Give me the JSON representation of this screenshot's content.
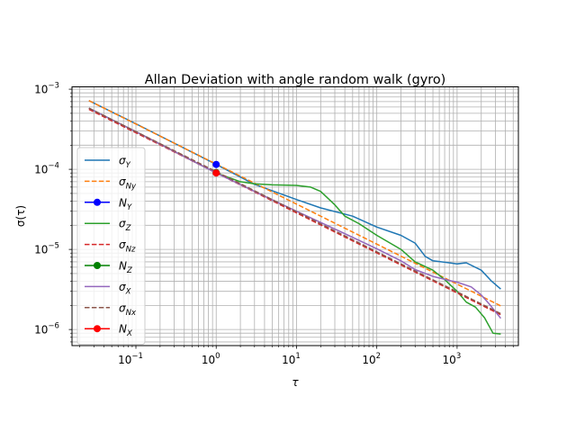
{
  "chart_data": {
    "type": "line",
    "title": "Allan Deviation with angle random walk (gyro)",
    "xlabel": "τ",
    "ylabel": "σ(τ)",
    "xscale": "log",
    "yscale": "log",
    "xlim": [
      0.016,
      5800
    ],
    "ylim": [
      6.3e-07,
      0.00107
    ],
    "grid": "on (major and minor)",
    "legend_position": "center-left",
    "x_ticks": [
      {
        "value": 0.1,
        "base": "10",
        "exp": "−1"
      },
      {
        "value": 1,
        "base": "10",
        "exp": "0"
      },
      {
        "value": 10,
        "base": "10",
        "exp": "1"
      },
      {
        "value": 100,
        "base": "10",
        "exp": "2"
      },
      {
        "value": 1000,
        "base": "10",
        "exp": "3"
      }
    ],
    "y_ticks": [
      {
        "value": 1e-06,
        "base": "10",
        "exp": "−6"
      },
      {
        "value": 1e-05,
        "base": "10",
        "exp": "−5"
      },
      {
        "value": 0.0001,
        "base": "10",
        "exp": "−4"
      },
      {
        "value": 0.001,
        "base": "10",
        "exp": "−3"
      }
    ],
    "series": [
      {
        "name": "σY",
        "sym": "σ",
        "sub": "Y",
        "color": "#1f77b4",
        "style": "solid",
        "x": [
          0.026,
          0.1,
          1,
          3,
          10,
          20,
          50,
          100,
          200,
          300,
          400,
          500,
          800,
          1000,
          1300,
          2000,
          2700,
          3500
        ],
        "y": [
          0.00072,
          0.00037,
          0.000115,
          6.5e-05,
          4.2e-05,
          3.3e-05,
          2.6e-05,
          1.9e-05,
          1.5e-05,
          1.2e-05,
          8.2e-06,
          7.2e-06,
          6.8e-06,
          6.6e-06,
          6.8e-06,
          5.5e-06,
          4e-06,
          3.2e-06
        ]
      },
      {
        "name": "σNy",
        "sym": "σ",
        "sub": "Ny",
        "color": "#ff7f0e",
        "style": "dashed",
        "x": [
          0.026,
          3500
        ],
        "y": [
          0.00072,
          1.97e-06
        ]
      },
      {
        "name": "NY",
        "sym": "N",
        "sub": "Y",
        "color": "#0000ff",
        "style": "marker",
        "x": [
          1
        ],
        "y": [
          0.000115
        ]
      },
      {
        "name": "σZ",
        "sym": "σ",
        "sub": "Z",
        "color": "#2ca02c",
        "style": "solid",
        "x": [
          0.026,
          0.1,
          1,
          2,
          3,
          5,
          10,
          15,
          20,
          30,
          40,
          60,
          100,
          200,
          300,
          500,
          700,
          1000,
          1300,
          1700,
          2200,
          2800,
          3500
        ],
        "y": [
          0.00058,
          0.000295,
          9e-05,
          7e-05,
          6.6e-05,
          6.4e-05,
          6.3e-05,
          6e-05,
          5.3e-05,
          3.6e-05,
          2.6e-05,
          2.1e-05,
          1.5e-05,
          1e-05,
          7e-06,
          5.5e-06,
          4.2e-06,
          3e-06,
          2.2e-06,
          1.9e-06,
          1.4e-06,
          9e-07,
          8.8e-07
        ]
      },
      {
        "name": "σNz",
        "sym": "σ",
        "sub": "Nz",
        "color": "#d62728",
        "style": "dashed",
        "x": [
          0.026,
          3500
        ],
        "y": [
          0.00056,
          1.53e-06
        ]
      },
      {
        "name": "NZ",
        "sym": "N",
        "sub": "Z",
        "color": "#008000",
        "style": "marker",
        "x": [
          1
        ],
        "y": [
          9.1e-05
        ]
      },
      {
        "name": "σX",
        "sym": "σ",
        "sub": "X",
        "color": "#9467bd",
        "style": "solid",
        "x": [
          0.026,
          0.1,
          1,
          3,
          10,
          30,
          100,
          200,
          300,
          500,
          800,
          1000,
          1500,
          2000,
          2500,
          3500
        ],
        "y": [
          0.00058,
          0.000295,
          9e-05,
          5.3e-05,
          3e-05,
          1.8e-05,
          1.02e-05,
          7.2e-06,
          5.6e-06,
          4.6e-06,
          4.1e-06,
          3.9e-06,
          3.4e-06,
          2.7e-06,
          2.1e-06,
          1.38e-06
        ]
      },
      {
        "name": "σNx",
        "sym": "σ",
        "sub": "Nx",
        "color": "#8c564b",
        "style": "dashed",
        "x": [
          0.026,
          3500
        ],
        "y": [
          0.00058,
          1.58e-06
        ]
      },
      {
        "name": "NX",
        "sym": "N",
        "sub": "X",
        "color": "#ff0000",
        "style": "marker",
        "x": [
          1
        ],
        "y": [
          9e-05
        ]
      }
    ]
  }
}
